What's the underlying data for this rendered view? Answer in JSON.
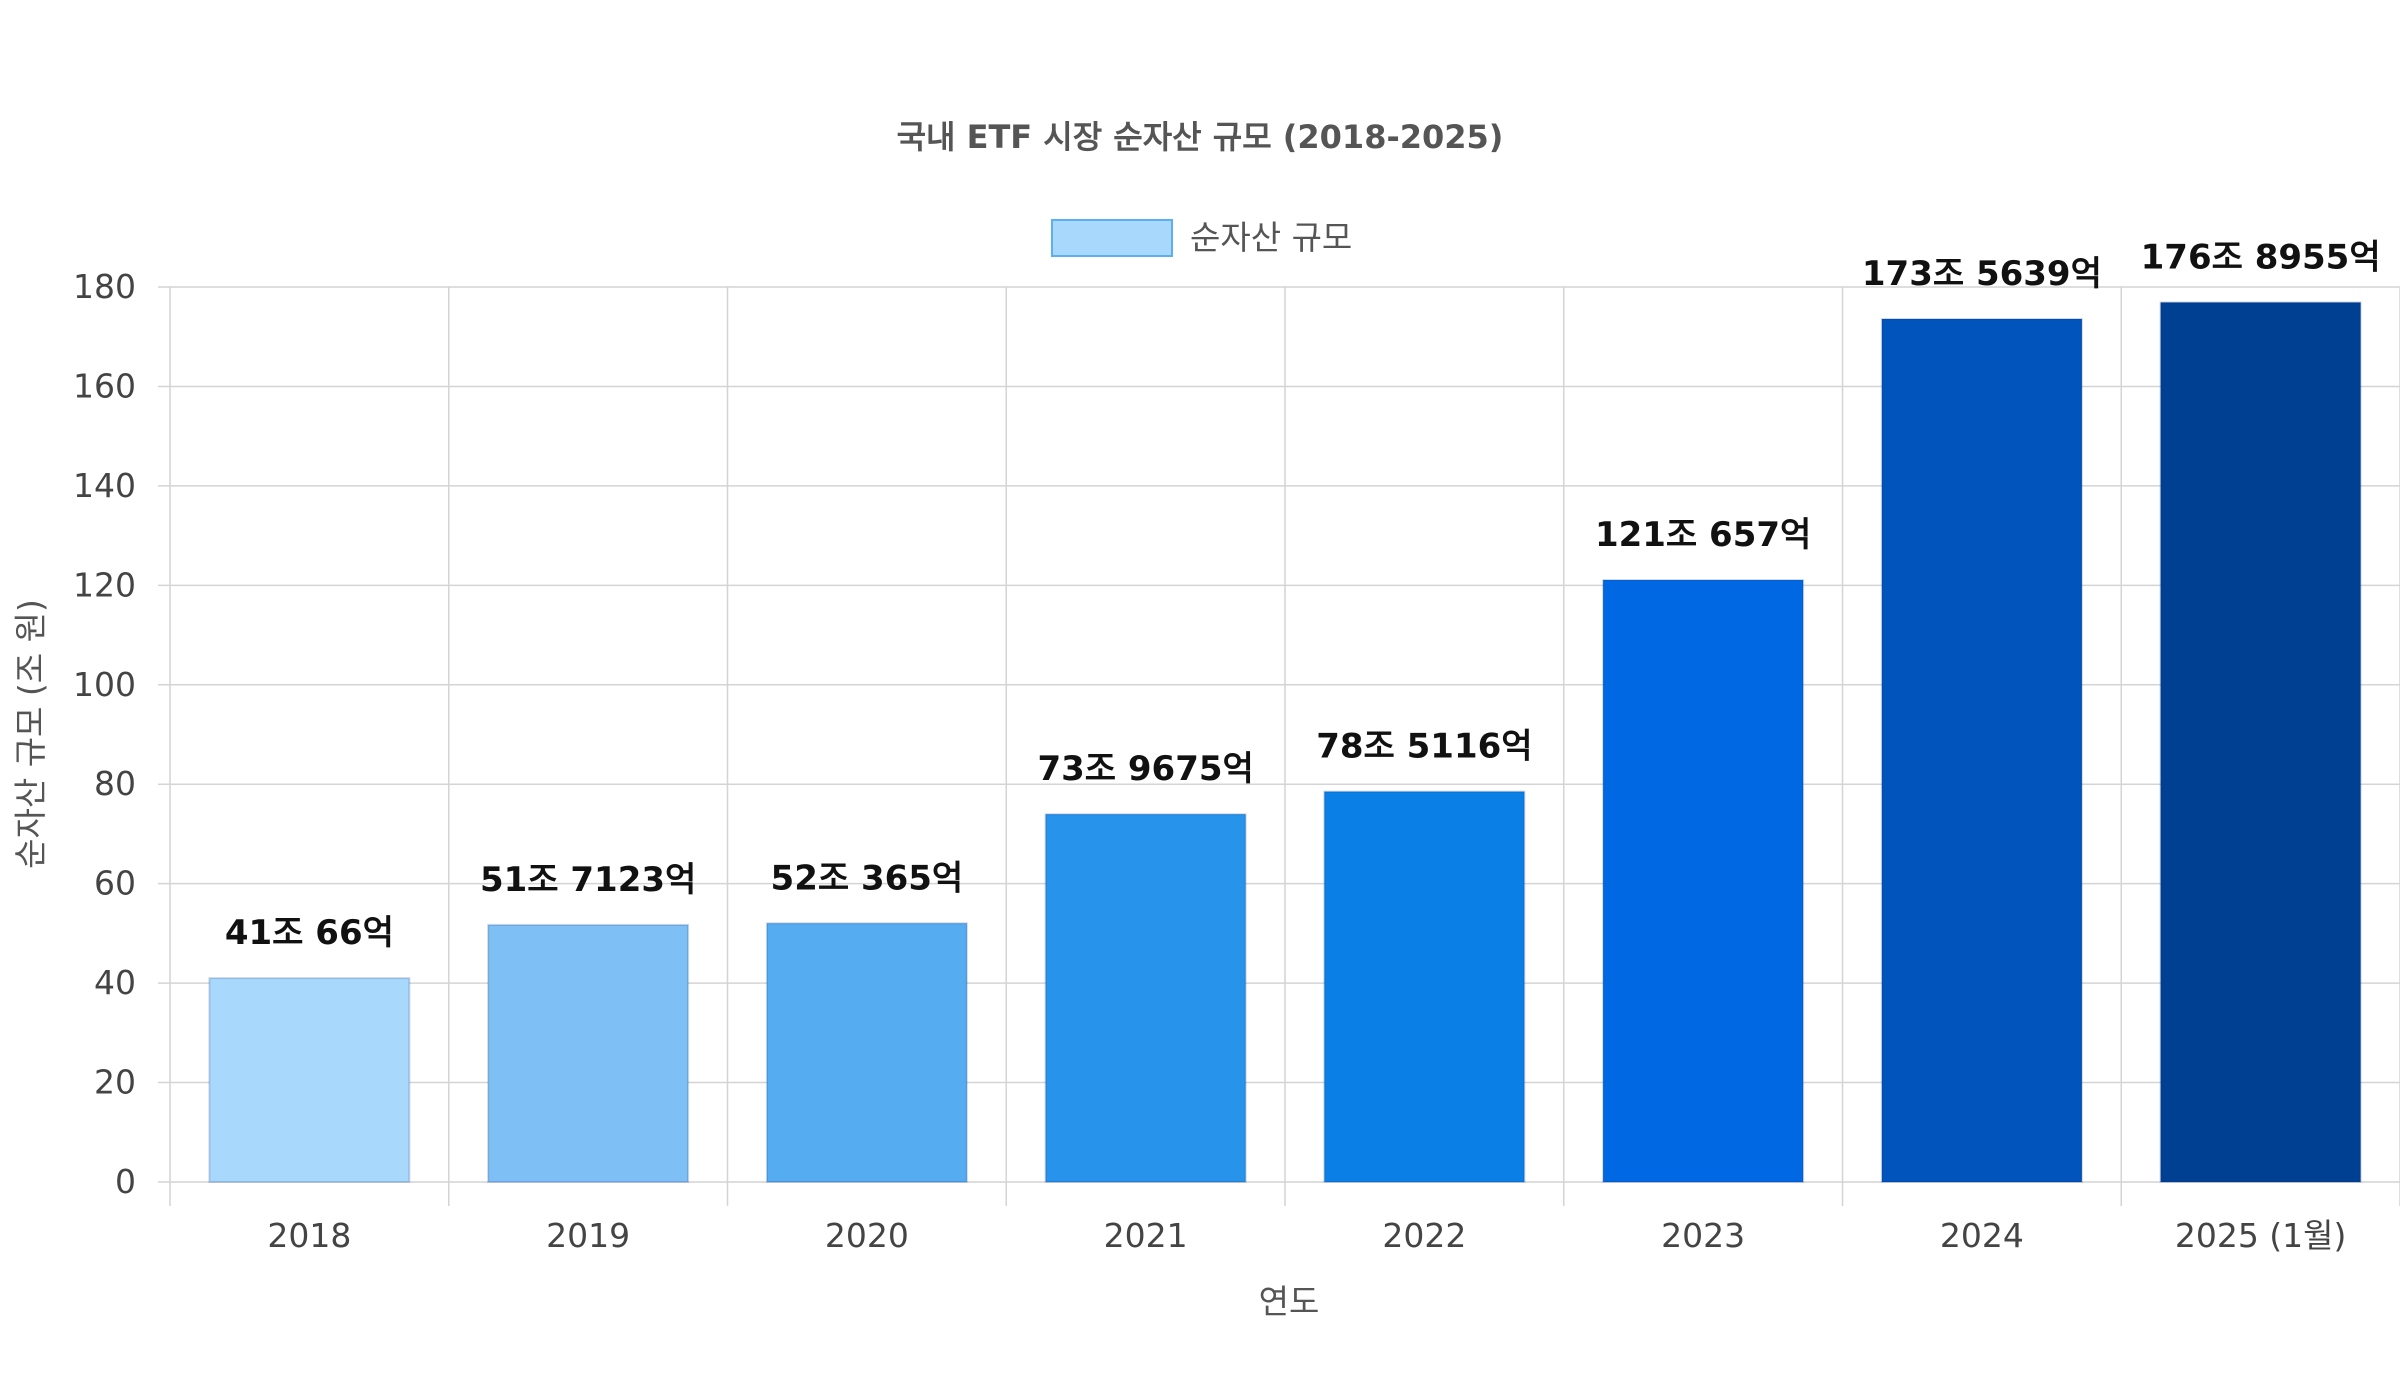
{
  "chart_data": {
    "type": "bar",
    "title": "국내 ETF 시장 순자산 규모 (2018-2025)",
    "xlabel": "연도",
    "ylabel": "순자산 규모 (조 원)",
    "ylim": [
      0,
      180
    ],
    "y_ticks": [
      0,
      20,
      40,
      60,
      80,
      100,
      120,
      140,
      160,
      180
    ],
    "grid": true,
    "legend": {
      "position": "top-center",
      "label": "순자산 규모",
      "swatch_color": "#a8d8fb"
    },
    "categories": [
      "2018",
      "2019",
      "2020",
      "2021",
      "2022",
      "2023",
      "2024",
      "2025 (1월)"
    ],
    "series": [
      {
        "name": "순자산 규모",
        "values": [
          41.0066,
          51.7123,
          52.0365,
          73.9675,
          78.5116,
          121.0657,
          173.5639,
          176.8955
        ],
        "data_labels": [
          "41조 66억",
          "51조 7123억",
          "52조 365억",
          "73조 9675억",
          "78조 5116억",
          "121조 657억",
          "173조 5639억",
          "176조 8955억"
        ],
        "colors": [
          "#a8d8fb",
          "#7ebff5",
          "#55acf0",
          "#2893ea",
          "#0a80e6",
          "#0068e2",
          "#0054bb",
          "#004092"
        ]
      }
    ]
  }
}
